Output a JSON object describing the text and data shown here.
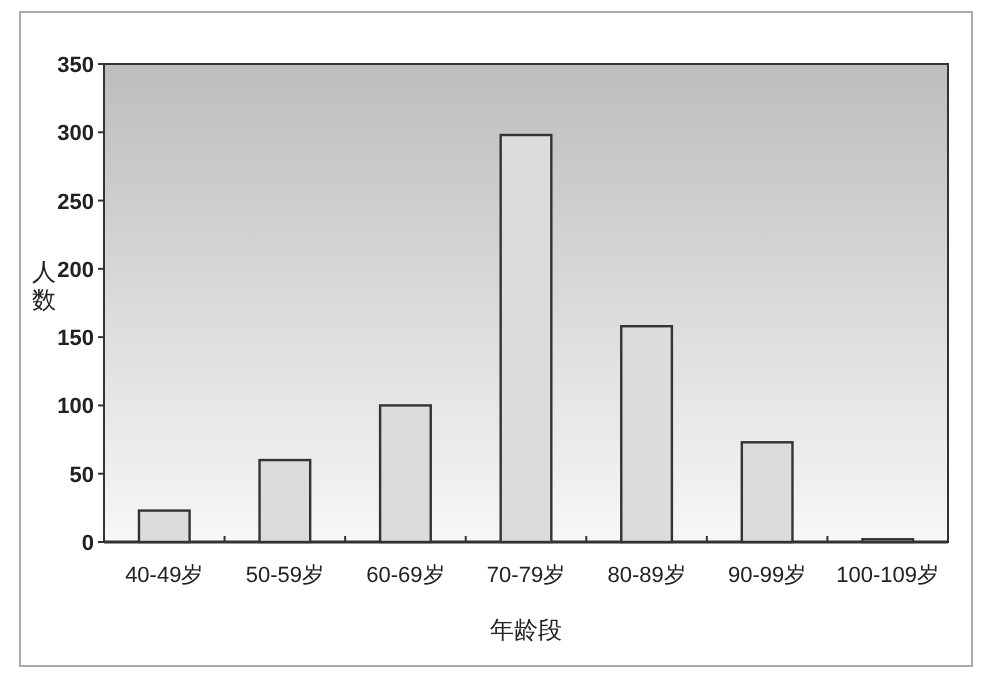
{
  "chart_data": {
    "type": "bar",
    "xlabel": "年龄段",
    "ylabel": "人数",
    "categories": [
      "40-49岁",
      "50-59岁",
      "60-69岁",
      "70-79岁",
      "80-89岁",
      "90-99岁",
      "100-109岁"
    ],
    "values": [
      23,
      60,
      100,
      298,
      158,
      73,
      2
    ],
    "color": "#dcdcdc",
    "ylim": [
      0,
      350
    ],
    "yticks": [
      0,
      50,
      100,
      150,
      200,
      250,
      300,
      350
    ],
    "grid": false
  }
}
